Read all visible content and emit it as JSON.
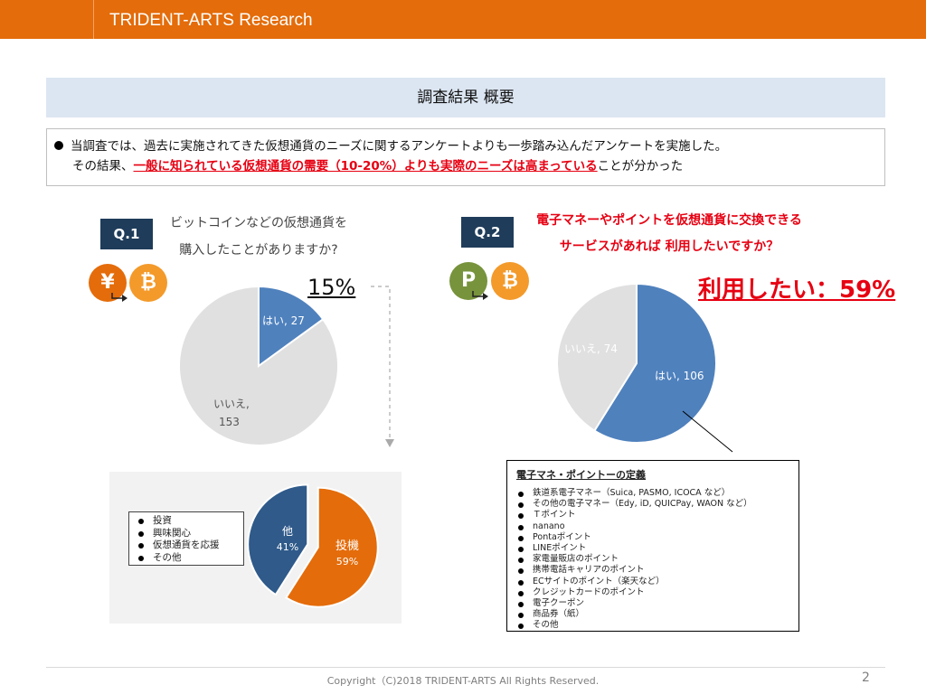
{
  "header": {
    "brand": "TRIDENT-ARTS Research"
  },
  "summary": {
    "title": "調査結果 概要",
    "line1": "当調査では、過去に実施されてきた仮想通貨のニーズに関するアンケートよりも一歩踏み込んだアンケートを実施した。",
    "line2_prefix": "その結果、",
    "line2_highlight": "一般に知られている仮想通貨の需要（10-20%）よりも実際のニーズは高まっている",
    "line2_suffix": "ことが分かった"
  },
  "q1": {
    "badge": "Q.1",
    "question_line1": "ビットコインなどの仮想通貨を",
    "question_line2": "購入したことがありますか?",
    "coin_left": "¥",
    "coin_right": "₿",
    "highlight": "15%"
  },
  "q2": {
    "badge": "Q.2",
    "question_line1": "電子マネーやポイントを仮想通貨に交換できる",
    "question_line2": "サービスがあれば 利用したいですか？",
    "coin_left": "P",
    "coin_right": "₿",
    "highlight": "利用したい：59%"
  },
  "colors": {
    "header": "#e46c0a",
    "blue": "#4f81bd",
    "grey": "#e0e0e0",
    "orange": "#e46c0a",
    "navy": "#2f5a8a",
    "red": "#e60012"
  },
  "chart_data": [
    {
      "type": "pie",
      "title": "",
      "slices": [
        {
          "label": "はい",
          "value": 27,
          "display": "はい, 27"
        },
        {
          "label": "いいえ",
          "value": 153,
          "display": "いいえ,",
          "display2": "153"
        }
      ]
    },
    {
      "type": "pie",
      "title": "",
      "slices": [
        {
          "label": "はい",
          "value": 106,
          "display": "はい, 106"
        },
        {
          "label": "いいえ",
          "value": 74,
          "display": "いいえ, 74"
        }
      ]
    },
    {
      "type": "pie",
      "title": "",
      "slices": [
        {
          "label": "投機",
          "value": 59,
          "display": "投機",
          "display2": "59%"
        },
        {
          "label": "他",
          "value": 41,
          "display": "他",
          "display2": "41%"
        }
      ],
      "legend": [
        "投資",
        "興味関心",
        "仮想通貨を応援",
        "その他"
      ]
    }
  ],
  "definitions": {
    "title": "電子マネ・ポイントーの定義",
    "items": [
      "鉄道系電子マネー（Suica, PASMO, ICOCA など）",
      "その他の電子マネー（Edy, iD, QUICPay, WAON など）",
      "Ｔポイント",
      "nanano",
      "Pontaポイント",
      "LINEポイント",
      "家電量販店のポイント",
      "携帯電話キャリアのポイント",
      "ECサイトのポイント（楽天など）",
      "クレジットカードのポイント",
      "電子クーポン",
      "商品券（紙）",
      "その他"
    ]
  },
  "footer": {
    "copyright": "Copyright（C)2018 TRIDENT-ARTS All Rights Reserved.",
    "page": "2"
  }
}
